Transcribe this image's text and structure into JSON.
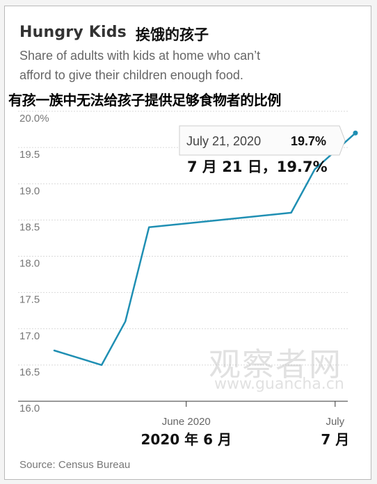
{
  "title": "Hungry Kids",
  "title_zh": "挨饿的孩子",
  "subtitle_lines": [
    "Share of adults with kids at home who can’t",
    "afford to give their children enough food."
  ],
  "subtitle_zh": "有孩一族中无法给孩子提供足够食物者的比例",
  "source": "Source: Census Bureau",
  "watermark": {
    "text": "观察者网",
    "url": "www.guancha.cn"
  },
  "colors": {
    "line": "#1f8fb3",
    "grid": "#d9d9d9",
    "axis": "#999999",
    "tooltip_border": "#cccccc"
  },
  "chart_data": {
    "type": "line",
    "x": [
      "2020-04-23",
      "2020-05-07",
      "2020-05-14",
      "2020-05-21",
      "2020-06-11",
      "2020-07-02",
      "2020-07-09",
      "2020-07-21"
    ],
    "series": [
      {
        "values": [
          16.7,
          16.5,
          17.1,
          18.4,
          18.5,
          18.6,
          19.2,
          19.7
        ]
      }
    ],
    "y_ticks": [
      "20.0%",
      "19.5",
      "19.0",
      "18.5",
      "18.0",
      "17.5",
      "17.0",
      "16.5",
      "16.0"
    ],
    "ylim": [
      16.0,
      20.0
    ],
    "grid": true,
    "x_tick_labels": [
      {
        "value": "2020-06-01",
        "label": "June 2020",
        "label_zh": "2020 年 6 月"
      },
      {
        "value": "2020-07-15",
        "label": "July",
        "label_zh": "7 月"
      }
    ],
    "annotation": {
      "x": "2020-07-21",
      "date_text": "July 21, 2020",
      "value_text": "19.7%",
      "zh_text": "7 月 21 日，19.7%"
    }
  }
}
